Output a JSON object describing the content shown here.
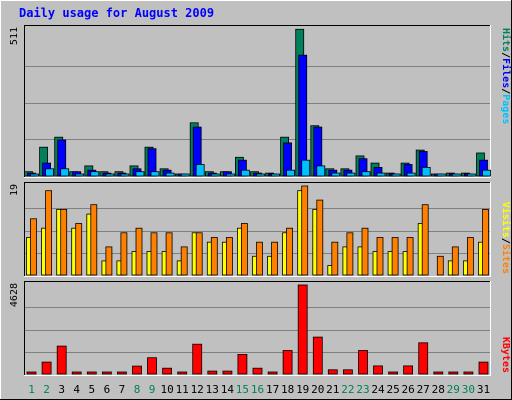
{
  "chart_data": [
    {
      "type": "bar",
      "title": "Daily usage for August 2009",
      "ymax_label": "511",
      "ylim": [
        0,
        511
      ],
      "grid": true,
      "legend_position": "right",
      "categories": [
        "1",
        "2",
        "3",
        "4",
        "5",
        "6",
        "7",
        "8",
        "9",
        "10",
        "11",
        "12",
        "13",
        "14",
        "15",
        "16",
        "17",
        "18",
        "19",
        "20",
        "21",
        "22",
        "23",
        "24",
        "25",
        "26",
        "27",
        "28",
        "29",
        "30",
        "31"
      ],
      "weekend_days": [
        "1",
        "2",
        "8",
        "9",
        "15",
        "16",
        "22",
        "23",
        "29",
        "30"
      ],
      "series": [
        {
          "name": "Hits",
          "color": "#00805C",
          "values": [
            15,
            100,
            135,
            15,
            35,
            15,
            15,
            35,
            100,
            25,
            5,
            185,
            15,
            15,
            65,
            15,
            10,
            135,
            510,
            175,
            25,
            25,
            70,
            45,
            10,
            45,
            90,
            5,
            10,
            10,
            80
          ]
        },
        {
          "name": "Files",
          "color": "#0000FF",
          "values": [
            10,
            45,
            125,
            15,
            20,
            10,
            10,
            25,
            95,
            20,
            5,
            170,
            10,
            15,
            55,
            10,
            5,
            115,
            420,
            170,
            20,
            20,
            60,
            30,
            5,
            40,
            85,
            5,
            5,
            5,
            55
          ]
        },
        {
          "name": "Pages",
          "color": "#00C0FF",
          "values": [
            5,
            25,
            25,
            5,
            15,
            5,
            5,
            15,
            15,
            10,
            3,
            40,
            5,
            5,
            20,
            5,
            3,
            20,
            55,
            35,
            10,
            10,
            15,
            10,
            3,
            10,
            30,
            3,
            5,
            5,
            20
          ]
        }
      ]
    },
    {
      "type": "bar",
      "ymax_label": "19",
      "ylim": [
        0,
        19
      ],
      "grid": true,
      "legend_position": "right",
      "categories": [
        "1",
        "2",
        "3",
        "4",
        "5",
        "6",
        "7",
        "8",
        "9",
        "10",
        "11",
        "12",
        "13",
        "14",
        "15",
        "16",
        "17",
        "18",
        "19",
        "20",
        "21",
        "22",
        "23",
        "24",
        "25",
        "26",
        "27",
        "28",
        "29",
        "30",
        "31"
      ],
      "series": [
        {
          "name": "Visits",
          "color": "#FFFF00",
          "values": [
            8,
            10,
            14,
            10,
            13,
            3,
            3,
            5,
            5,
            5,
            3,
            9,
            7,
            7,
            10,
            4,
            4,
            9,
            18,
            14,
            2,
            6,
            6,
            5,
            5,
            5,
            11,
            0,
            3,
            3,
            7
          ]
        },
        {
          "name": "Sites",
          "color": "#FF8000",
          "values": [
            12,
            18,
            14,
            11,
            15,
            6,
            9,
            10,
            9,
            9,
            6,
            9,
            8,
            8,
            11,
            7,
            7,
            10,
            19,
            16,
            7,
            9,
            10,
            8,
            8,
            8,
            15,
            4,
            6,
            8,
            14
          ]
        }
      ]
    },
    {
      "type": "bar",
      "ymax_label": "4628",
      "ylim": [
        0,
        4628
      ],
      "grid": true,
      "legend_position": "right",
      "categories": [
        "1",
        "2",
        "3",
        "4",
        "5",
        "6",
        "7",
        "8",
        "9",
        "10",
        "11",
        "12",
        "13",
        "14",
        "15",
        "16",
        "17",
        "18",
        "19",
        "20",
        "21",
        "22",
        "23",
        "24",
        "25",
        "26",
        "27",
        "28",
        "29",
        "30",
        "31"
      ],
      "series": [
        {
          "name": "KBytes",
          "color": "#FF0000",
          "values": [
            100,
            620,
            1450,
            50,
            100,
            50,
            100,
            410,
            850,
            300,
            50,
            1550,
            150,
            150,
            1020,
            300,
            100,
            1220,
            4628,
            1920,
            220,
            220,
            1220,
            420,
            100,
            420,
            1620,
            50,
            100,
            100,
            620
          ]
        }
      ]
    }
  ]
}
